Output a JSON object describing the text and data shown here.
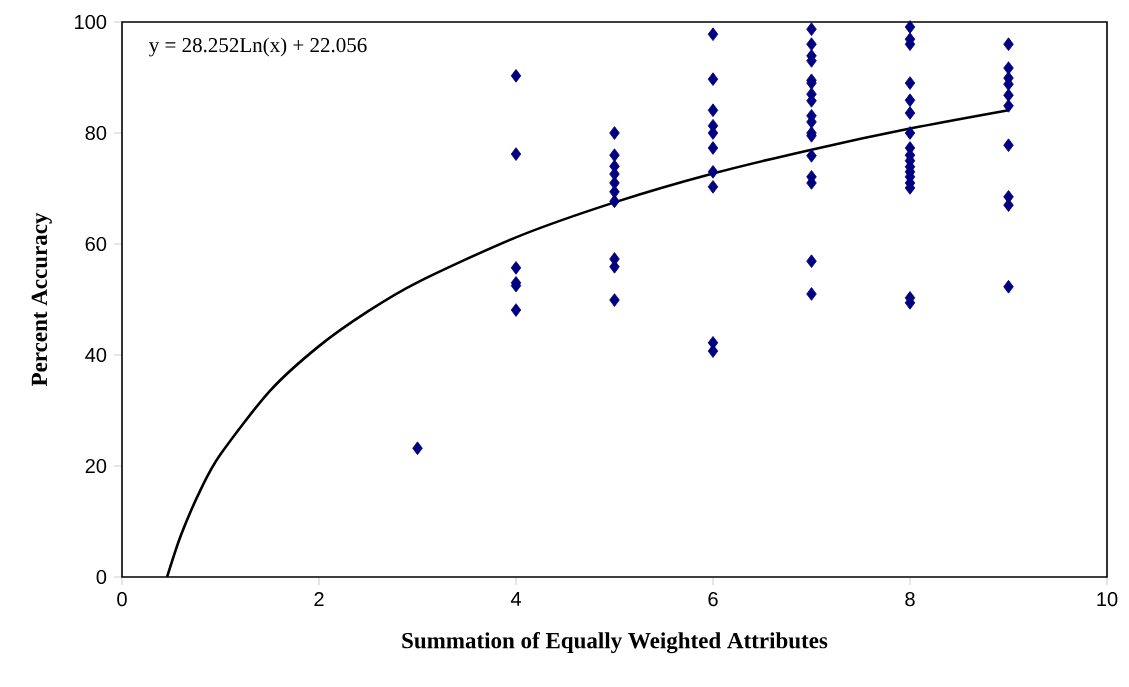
{
  "chart_data": {
    "type": "scatter",
    "xlabel": "Summation of Equally Weighted Attributes",
    "ylabel": "Percent Accuracy",
    "annotations": [
      "y = 28.252Ln(x) + 22.056"
    ],
    "series": [
      {
        "color": "#000080",
        "marker": "diamond",
        "x": [
          3,
          4,
          4,
          4,
          4,
          4,
          4,
          5,
          5,
          5,
          5,
          5,
          5,
          5,
          5,
          5,
          5,
          6,
          6,
          6,
          6,
          6,
          6,
          6,
          6,
          6,
          6,
          7,
          7,
          7,
          7,
          7,
          7,
          7,
          7,
          7,
          7,
          7,
          7,
          7,
          7,
          7,
          7,
          7,
          8,
          8,
          8,
          8,
          8,
          8,
          8,
          8,
          8,
          8,
          8,
          8,
          8,
          8,
          8,
          8,
          8,
          9,
          9,
          9,
          9,
          9,
          9,
          9,
          9,
          9,
          9
        ],
        "values": [
          23.2,
          90.3,
          76.2,
          55.7,
          53,
          52.5,
          48.1,
          80,
          76,
          74,
          72.6,
          71,
          69.4,
          67.7,
          57.3,
          55.9,
          49.9,
          97.8,
          89.7,
          84.1,
          81.3,
          80,
          77.3,
          73,
          70.3,
          42.2,
          40.7,
          98.7,
          96,
          93.9,
          93,
          89.5,
          89,
          87,
          85.8,
          83.1,
          82,
          80,
          79.5,
          75.9,
          72.1,
          71,
          56.9,
          51,
          99.1,
          96.9,
          96,
          89,
          85.9,
          83.6,
          80,
          77.3,
          76,
          75,
          73.9,
          73,
          72.1,
          71,
          70.1,
          50.3,
          49.4,
          96,
          91.7,
          89.9,
          88.8,
          86.8,
          84.9,
          77.8,
          68.5,
          67,
          52.3
        ]
      },
      {
        "type": "line",
        "color": "#000000",
        "marker": "none",
        "x": [
          0.458,
          0.6,
          0.8,
          1,
          1.5,
          2,
          2.5,
          3,
          4,
          5,
          6,
          7,
          8,
          9
        ],
        "values": [
          0,
          7.6,
          15.8,
          22.1,
          33.5,
          41.6,
          47.9,
          53.1,
          61.2,
          67.5,
          72.7,
          77,
          80.8,
          84.1
        ]
      }
    ],
    "xlim": [
      0,
      10
    ],
    "xticks": [
      0,
      2,
      4,
      6,
      8,
      10
    ],
    "ylim": [
      0,
      100
    ],
    "yticks": [
      0,
      20,
      40,
      60,
      80,
      100
    ]
  }
}
